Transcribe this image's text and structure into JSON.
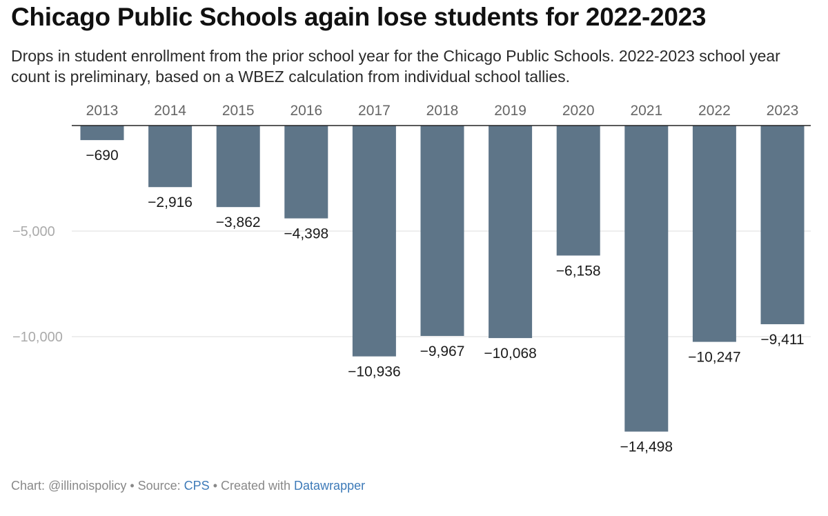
{
  "header": {
    "title": "Chicago Public Schools again lose students for 2022-2023",
    "subtitle": "Drops in student enrollment from the prior school year for the Chicago Public Schools. 2022-2023 school year count is preliminary, based on a WBEZ calculation from individual school tallies."
  },
  "footer": {
    "chart_prefix": "Chart: @illinoispolicy • Source: ",
    "source_link": "CPS",
    "created_prefix": " • Created with ",
    "tool_link": "Datawrapper"
  },
  "colors": {
    "bar": "#5e7588",
    "link": "#3d7ab8",
    "grid": "#dddddd",
    "baseline": "#222222"
  },
  "chart_data": {
    "type": "bar",
    "title": "Chicago Public Schools again lose students for 2022-2023",
    "xlabel": "",
    "ylabel": "",
    "categories": [
      "2013",
      "2014",
      "2015",
      "2016",
      "2017",
      "2018",
      "2019",
      "2020",
      "2021",
      "2022",
      "2023"
    ],
    "values": [
      -690,
      -2916,
      -3862,
      -4398,
      -10936,
      -9967,
      -10068,
      -6158,
      -14498,
      -10247,
      -9411
    ],
    "value_labels": [
      "−690",
      "−2,916",
      "−3,862",
      "−4,398",
      "−10,936",
      "−9,967",
      "−10,068",
      "−6,158",
      "−14,498",
      "−10,247",
      "−9,411"
    ],
    "y_ticks": [
      -5000,
      -10000
    ],
    "y_tick_labels": [
      "−5,000",
      "−10,000"
    ],
    "ylim": [
      -16000,
      0
    ],
    "grid": true,
    "legend": "none"
  }
}
